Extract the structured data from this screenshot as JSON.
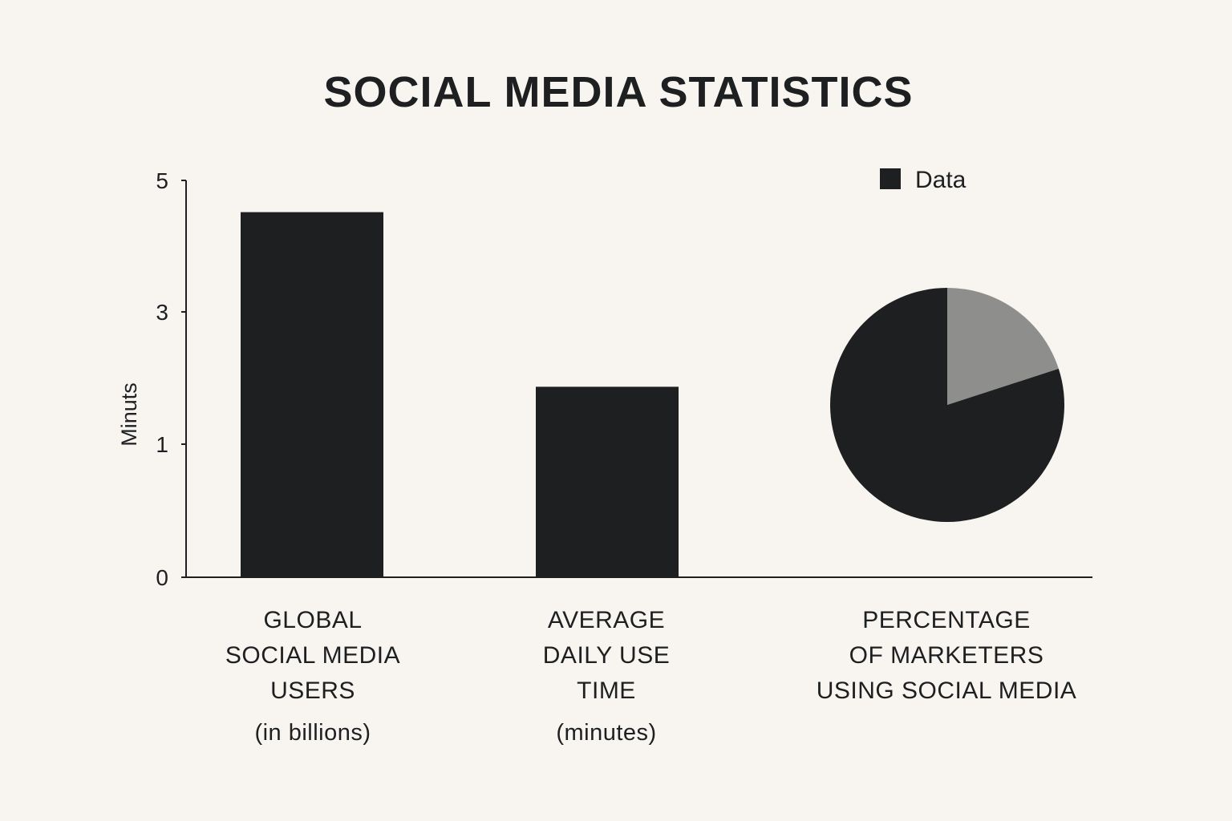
{
  "title": "SOCIAL MEDIA STATISTICS",
  "chart_data": [
    {
      "type": "bar",
      "categories": [
        "GLOBAL SOCIAL MEDIA USERS (in billions)",
        "AVERAGE DAILY USE TIME (minutes)"
      ],
      "values": [
        4.6,
        2.4
      ],
      "ylabel": "Minuts",
      "y_ticks": [
        "0",
        "1",
        "3",
        "5"
      ],
      "ylim": [
        0,
        5
      ],
      "bar_color": "#1d1f21",
      "grid": false
    },
    {
      "type": "pie",
      "category": "PERCENTAGE OF MARKETERS USING SOCIAL MEDIA",
      "slices": [
        {
          "fraction": 0.8,
          "color": "#1d1f21"
        },
        {
          "fraction": 0.2,
          "color": "#8e8e8c"
        }
      ],
      "legend": {
        "label": "Data",
        "color": "#1d1f21",
        "placement": "top-right"
      }
    }
  ],
  "labels": [
    {
      "lines": [
        "GLOBAL",
        "SOCIAL MEDIA",
        "USERS"
      ],
      "sub": "(in billions)"
    },
    {
      "lines": [
        "AVERAGE",
        "DAILY USE",
        "TIME"
      ],
      "sub": "(minutes)"
    },
    {
      "lines": [
        "PERCENTAGE",
        "OF MARKETERS",
        "USING SOCIAL MEDIA"
      ],
      "sub": ""
    }
  ]
}
